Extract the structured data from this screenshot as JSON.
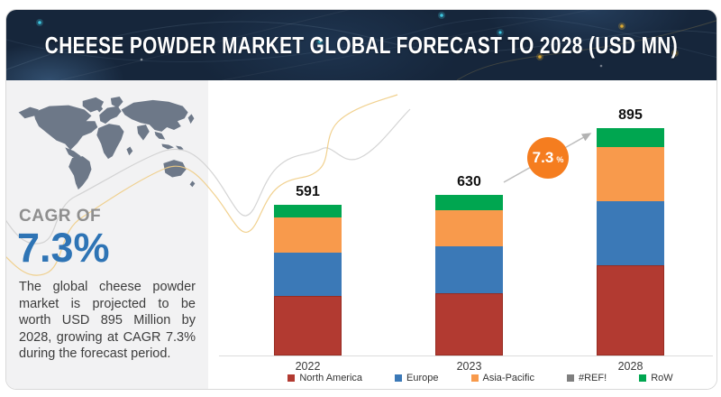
{
  "header": {
    "title": "CHEESE POWDER MARKET GLOBAL FORECAST TO 2028 (USD MN)"
  },
  "left_panel": {
    "cagr_label": "CAGR OF",
    "cagr_value": "7.3%",
    "description": "The global cheese powder market is projected to be worth USD 895 Million by 2028, growing at CAGR 7.3% during the forecast period."
  },
  "chart_data": {
    "type": "stacked-bar",
    "title": "Cheese Powder Market Global Forecast to 2028 (USD MN)",
    "categories": [
      "2022",
      "2023",
      "2028"
    ],
    "totals": [
      591,
      630,
      895
    ],
    "series": [
      {
        "name": "North America",
        "color": "#b23a31",
        "values": [
          234,
          244,
          355
        ]
      },
      {
        "name": "Europe",
        "color": "#3b79b7",
        "values": [
          170,
          184,
          252
        ]
      },
      {
        "name": "Asia-Pacific",
        "color": "#f89a4c",
        "values": [
          138,
          142,
          213
        ]
      },
      {
        "name": "#REF!",
        "color": "#7f7f7f",
        "values": [
          0,
          0,
          0
        ]
      },
      {
        "name": "RoW",
        "color": "#00a650",
        "values": [
          49,
          60,
          75
        ]
      }
    ],
    "ylim": [
      0,
      900
    ],
    "grid": false,
    "legend_position": "bottom",
    "annotation": {
      "value": "7.3",
      "unit": "%",
      "type": "cagr-arrow",
      "from_category": "2023",
      "to_category": "2028"
    }
  },
  "colors": {
    "banner_bg": "#16263b",
    "panel_bg": "#f2f2f3",
    "accent_blue": "#2e74b5",
    "badge_orange": "#f57d1f",
    "map_slate": "#6d7888"
  }
}
